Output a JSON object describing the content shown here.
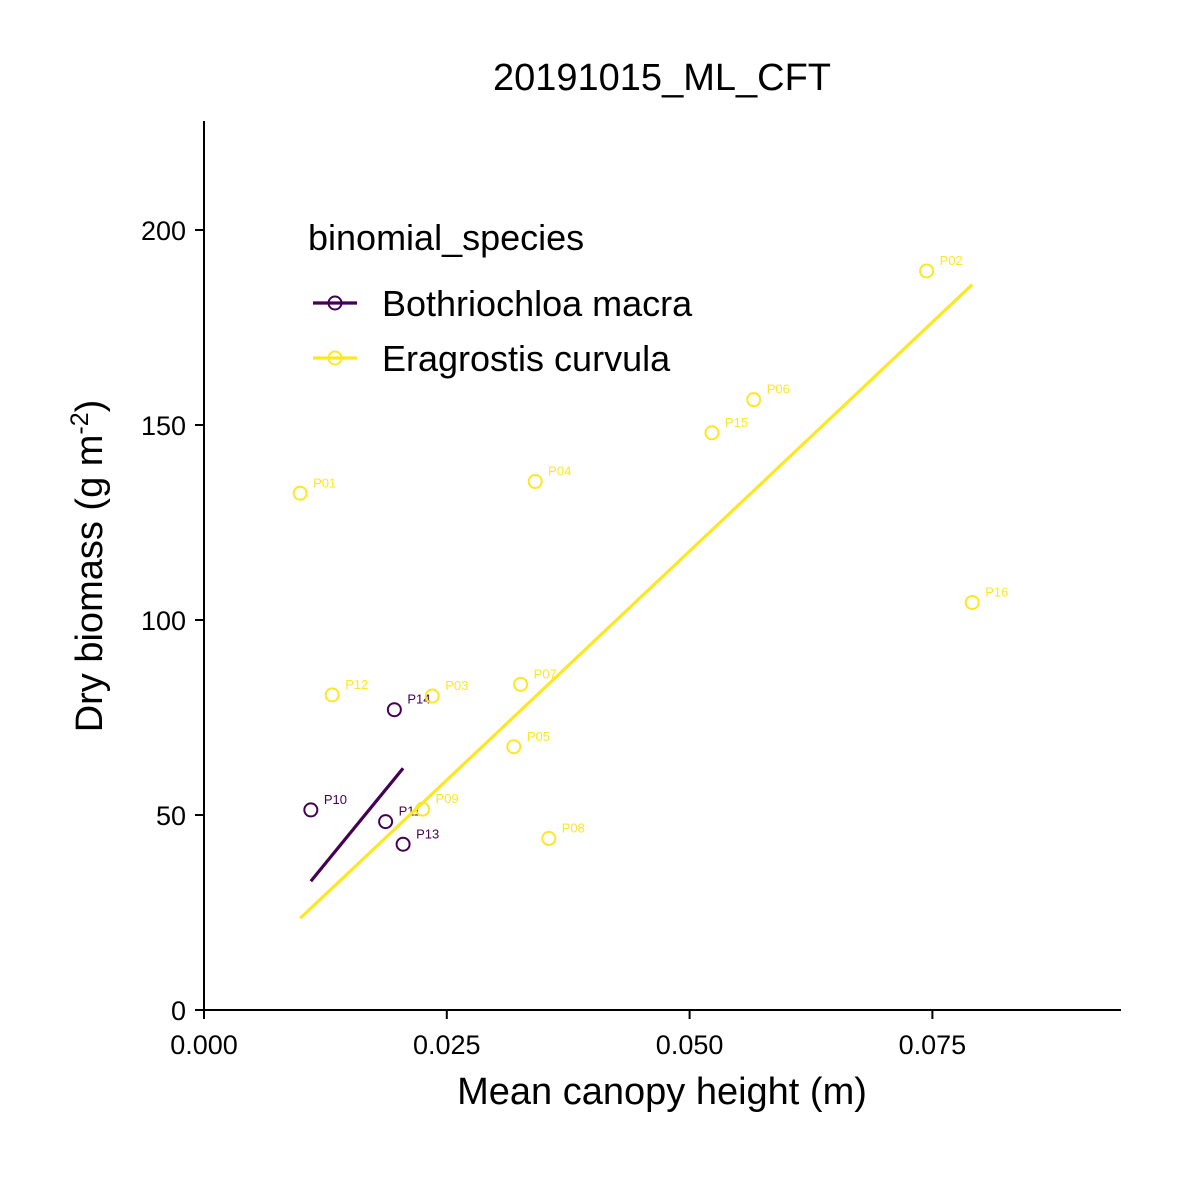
{
  "chart_data": {
    "type": "scatter",
    "title": "20191015_ML_CFT",
    "xlabel": "Mean canopy height (m)",
    "ylabel": "Dry biomass (g m",
    "ylabel_superscript": "-2",
    "ylabel_suffix": ")",
    "xlim": [
      0,
      0.094
    ],
    "ylim": [
      0,
      225
    ],
    "x_ticks": [
      0,
      0.025,
      0.05,
      0.075
    ],
    "x_tick_labels": [
      "0.000",
      "0.025",
      "0.050",
      "0.075"
    ],
    "y_ticks": [
      0,
      50,
      100,
      150,
      200
    ],
    "y_tick_labels": [
      "0",
      "50",
      "100",
      "150",
      "200"
    ],
    "grid": false,
    "legend": {
      "title": "binomial_species",
      "placement": "top-left inside"
    },
    "series": [
      {
        "name": "Bothriochloa macra",
        "color": "#440154",
        "points": [
          {
            "label": "P10",
            "x": 0.011,
            "y": 51.3
          },
          {
            "label": "P11",
            "x": 0.0187,
            "y": 48.3
          },
          {
            "label": "P13",
            "x": 0.0205,
            "y": 42.5
          },
          {
            "label": "P14",
            "x": 0.0196,
            "y": 77.0
          }
        ],
        "fit": [
          {
            "x": 0.011,
            "y": 33.0
          },
          {
            "x": 0.0205,
            "y": 62.0
          }
        ]
      },
      {
        "name": "Eragrostis curvula",
        "color": "#FDE725",
        "points": [
          {
            "label": "P01",
            "x": 0.0099,
            "y": 132.5
          },
          {
            "label": "P02",
            "x": 0.0744,
            "y": 189.5
          },
          {
            "label": "P03",
            "x": 0.0235,
            "y": 80.5
          },
          {
            "label": "P04",
            "x": 0.0341,
            "y": 135.5
          },
          {
            "label": "P05",
            "x": 0.0319,
            "y": 67.5
          },
          {
            "label": "P06",
            "x": 0.0566,
            "y": 156.5
          },
          {
            "label": "P07",
            "x": 0.0326,
            "y": 83.5
          },
          {
            "label": "P08",
            "x": 0.0355,
            "y": 44.0
          },
          {
            "label": "P09",
            "x": 0.0225,
            "y": 51.5
          },
          {
            "label": "P12",
            "x": 0.0132,
            "y": 80.8
          },
          {
            "label": "P15",
            "x": 0.0523,
            "y": 148.0
          },
          {
            "label": "P16",
            "x": 0.0791,
            "y": 104.5
          }
        ],
        "fit": [
          {
            "x": 0.0099,
            "y": 23.5
          },
          {
            "x": 0.0791,
            "y": 186.0
          }
        ]
      }
    ]
  }
}
